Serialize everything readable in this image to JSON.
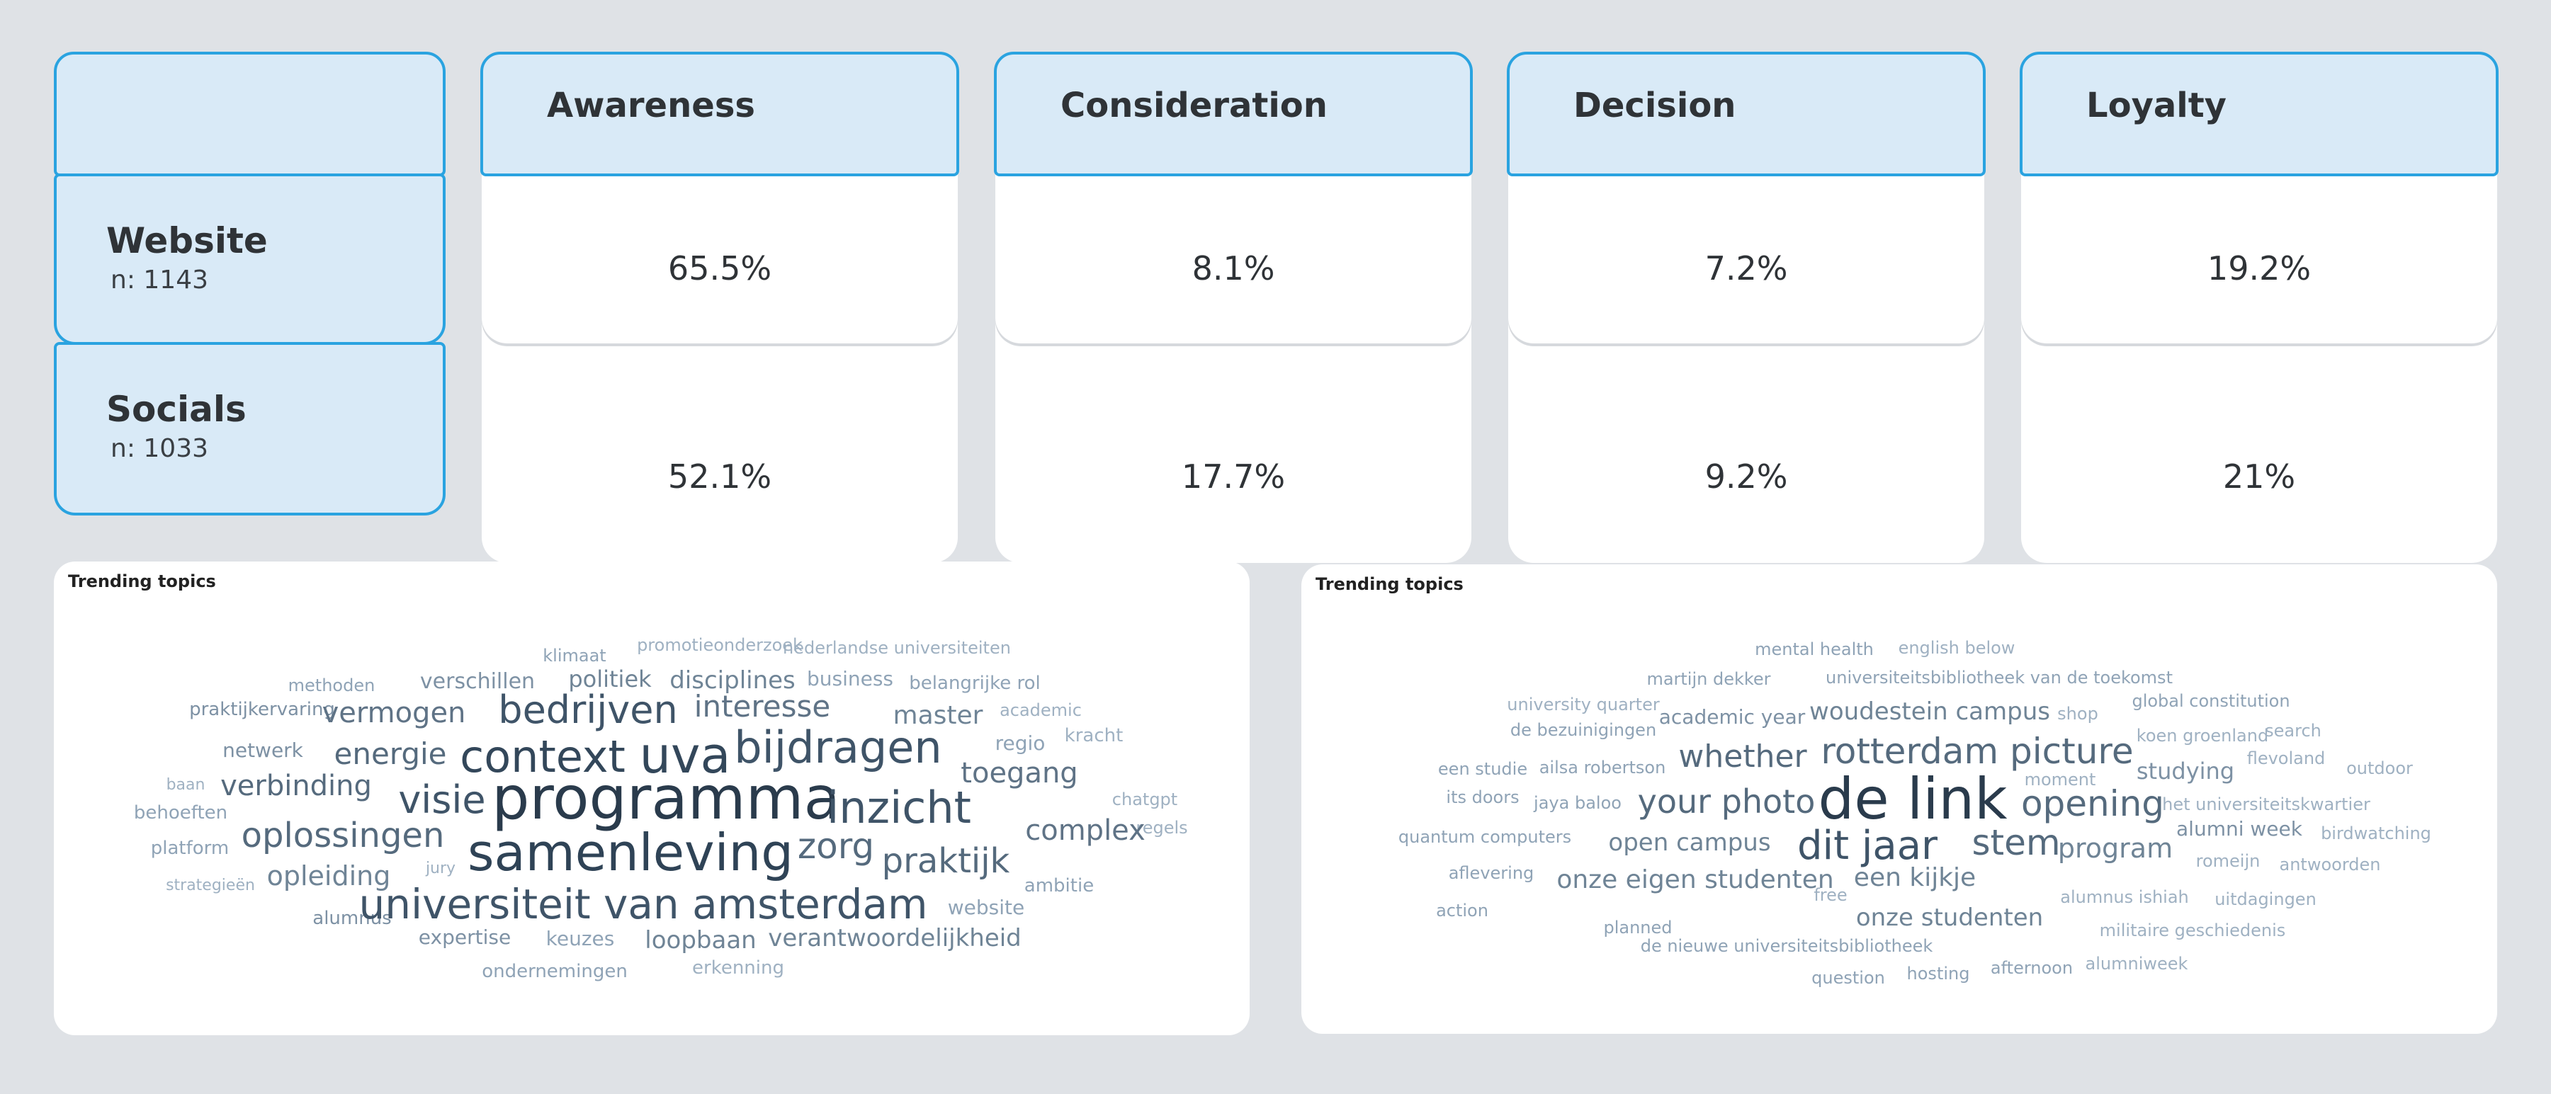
{
  "row_header": {
    "rows": [
      {
        "label": "Website",
        "n": "n: 1143"
      },
      {
        "label": "Socials",
        "n": "n: 1033"
      }
    ]
  },
  "columns": [
    {
      "title": "Awareness",
      "website": "65.5%",
      "socials": "52.1%"
    },
    {
      "title": "Consideration",
      "website": "8.1%",
      "socials": "17.7%"
    },
    {
      "title": "Decision",
      "website": "7.2%",
      "socials": "9.2%"
    },
    {
      "title": "Loyalty",
      "website": "19.2%",
      "socials": "21%"
    }
  ],
  "wordclouds": [
    {
      "title": "Trending topics",
      "words": [
        "klimaat",
        "promotieonderzoek",
        "nederlandse universiteiten",
        "methoden",
        "verschillen",
        "politiek",
        "disciplines",
        "business",
        "belangrijke rol",
        "praktijkervaring",
        "vermogen",
        "bedrijven",
        "interesse",
        "master",
        "academic",
        "netwerk",
        "energie",
        "context",
        "uva",
        "bijdragen",
        "regio",
        "kracht",
        "baan",
        "verbinding",
        "visie",
        "toegang",
        "chatgpt",
        "behoeften",
        "programma",
        "inzicht",
        "regels",
        "platform",
        "oplossingen",
        "samenleving",
        "zorg",
        "complex",
        "strategieën",
        "opleiding",
        "jury",
        "praktijk",
        "ambitie",
        "alumnus",
        "universiteit van amsterdam",
        "website",
        "expertise",
        "keuzes",
        "loopbaan",
        "verantwoordelijkheid",
        "ondernemingen",
        "erkenning"
      ]
    },
    {
      "title": "Trending topics",
      "words": [
        "mental health",
        "english below",
        "martijn dekker",
        "universiteitsbibliotheek van de toekomst",
        "university quarter",
        "academic year",
        "woudestein campus",
        "shop",
        "global constitution",
        "de bezuinigingen",
        "koen groenland",
        "search",
        "rotterdam picture",
        "flevoland",
        "een studie",
        "ailsa robertson",
        "whether",
        "studying",
        "outdoor",
        "moment",
        "its doors",
        "jaya baloo",
        "your photo",
        "de link",
        "opening",
        "het universiteitskwartier",
        "quantum computers",
        "open campus",
        "dit jaar",
        "stem",
        "alumni week",
        "birdwatching",
        "program",
        "romeijn",
        "antwoorden",
        "aflevering",
        "onze eigen studenten",
        "een kijkje",
        "free",
        "alumnus ishiah",
        "uitdagingen",
        "action",
        "planned",
        "onze studenten",
        "militaire geschiedenis",
        "de nieuwe universiteitsbibliotheek",
        "question",
        "hosting",
        "afternoon",
        "alumniweek"
      ]
    }
  ]
}
